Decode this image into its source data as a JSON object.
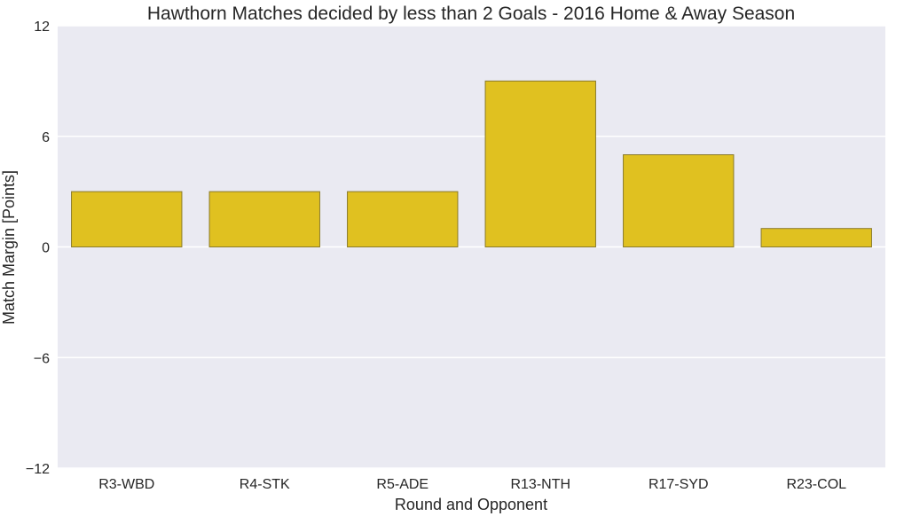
{
  "chart_data": {
    "type": "bar",
    "title": "Hawthorn Matches decided by less than 2 Goals - 2016 Home & Away Season",
    "xlabel": "Round and Opponent",
    "ylabel": "Match Margin [Points]",
    "categories": [
      "R3-WBD",
      "R4-STK",
      "R5-ADE",
      "R13-NTH",
      "R17-SYD",
      "R23-COL"
    ],
    "values": [
      3,
      3,
      3,
      9,
      5,
      1
    ],
    "ylim": [
      -12,
      12
    ],
    "yticks": [
      12,
      6,
      0,
      -6,
      -12
    ],
    "ytick_labels": [
      "12",
      "6",
      "0",
      "−6",
      "−12"
    ],
    "grid": true,
    "colors": {
      "bar": "#e0c120",
      "bar_edge": "#8a7a2a",
      "plot_bg": "#eaeaf2",
      "grid": "#ffffff"
    }
  }
}
